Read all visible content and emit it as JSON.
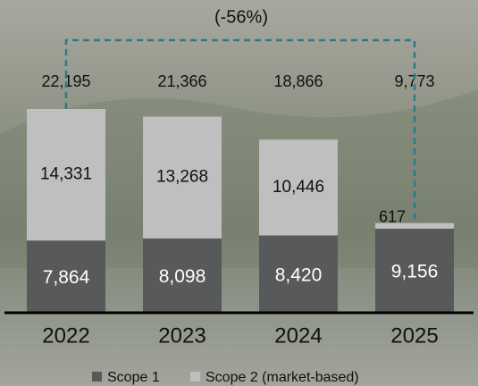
{
  "chart_data": {
    "type": "stacked-bar",
    "annotation": "(-56%)",
    "categories": [
      "2022",
      "2023",
      "2024",
      "2025"
    ],
    "series": [
      {
        "name": "Scope 1",
        "color": "#58595b",
        "values": [
          7864,
          8098,
          8420,
          9156
        ],
        "value_labels": [
          "7,864",
          "8,098",
          "8,420",
          "9,156"
        ]
      },
      {
        "name": "Scope 2 (market-based)",
        "color": "#bfbfbf",
        "values": [
          14331,
          13268,
          10446,
          617
        ],
        "value_labels": [
          "14,331",
          "13,268",
          "10,446",
          "617"
        ]
      }
    ],
    "totals": {
      "values": [
        22195,
        21366,
        18866,
        9773
      ],
      "value_labels": [
        "22,195",
        "21,366",
        "18,866",
        "9,773"
      ]
    },
    "legend": "bottom"
  }
}
